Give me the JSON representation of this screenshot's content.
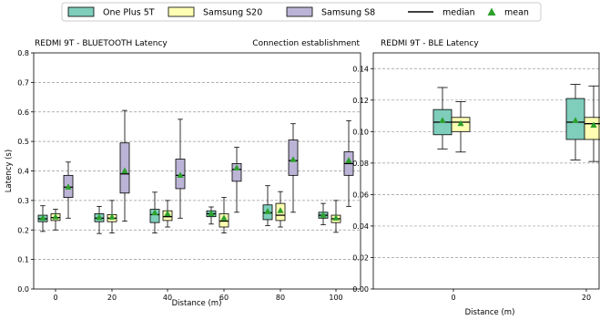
{
  "colors": {
    "one_plus_5t": "#7fcdbb",
    "samsung_s20": "#ffffb3",
    "samsung_s8": "#bcb4d6",
    "median": "#000000",
    "mean": "#2ca02c",
    "grid": "#999999"
  },
  "legend": {
    "one_plus": "One Plus 5T",
    "samsung_s20": "Samsung S20",
    "samsung_s8": "Samsung S8",
    "median": "median",
    "mean": "mean"
  },
  "chart_data": [
    {
      "type": "box",
      "title": "REDMI 9T - BLUETOOTH Latency",
      "subtitle": "Connection establishment",
      "xlabel": "Distance (m)",
      "ylabel": "Latency (s)",
      "ylim": [
        0.0,
        0.8
      ],
      "yticks": [
        "0.0",
        "0.1",
        "0.2",
        "0.3",
        "0.4",
        "0.5",
        "0.6",
        "0.7",
        "0.8"
      ],
      "grid": "y-dashed",
      "categories": [
        "0",
        "20",
        "40",
        "60",
        "80",
        "100"
      ],
      "series": [
        {
          "name": "One Plus 5T",
          "boxes": [
            {
              "whislo": 0.195,
              "q1": 0.228,
              "med": 0.238,
              "q3": 0.25,
              "whishi": 0.282,
              "mean": 0.24
            },
            {
              "whislo": 0.188,
              "q1": 0.228,
              "med": 0.24,
              "q3": 0.255,
              "whishi": 0.28,
              "mean": 0.242
            },
            {
              "whislo": 0.19,
              "q1": 0.225,
              "med": 0.252,
              "q3": 0.27,
              "whishi": 0.328,
              "mean": 0.258
            },
            {
              "whislo": 0.22,
              "q1": 0.245,
              "med": 0.255,
              "q3": 0.265,
              "whishi": 0.278,
              "mean": 0.255
            },
            {
              "whislo": 0.215,
              "q1": 0.235,
              "med": 0.258,
              "q3": 0.285,
              "whishi": 0.35,
              "mean": 0.262
            },
            {
              "whislo": 0.218,
              "q1": 0.24,
              "med": 0.25,
              "q3": 0.26,
              "whishi": 0.29,
              "mean": 0.25
            }
          ]
        },
        {
          "name": "Samsung S20",
          "boxes": [
            {
              "whislo": 0.2,
              "q1": 0.232,
              "med": 0.242,
              "q3": 0.255,
              "whishi": 0.27,
              "mean": 0.244
            },
            {
              "whislo": 0.19,
              "q1": 0.228,
              "med": 0.24,
              "q3": 0.252,
              "whishi": 0.3,
              "mean": 0.243
            },
            {
              "whislo": 0.21,
              "q1": 0.232,
              "med": 0.245,
              "q3": 0.265,
              "whishi": 0.3,
              "mean": 0.255
            },
            {
              "whislo": 0.19,
              "q1": 0.21,
              "med": 0.23,
              "q3": 0.255,
              "whishi": 0.31,
              "mean": 0.24
            },
            {
              "whislo": 0.21,
              "q1": 0.232,
              "med": 0.25,
              "q3": 0.29,
              "whishi": 0.33,
              "mean": 0.265
            },
            {
              "whislo": 0.192,
              "q1": 0.225,
              "med": 0.238,
              "q3": 0.25,
              "whishi": 0.3,
              "mean": 0.24
            }
          ]
        },
        {
          "name": "Samsung S8",
          "boxes": [
            {
              "whislo": 0.24,
              "q1": 0.31,
              "med": 0.345,
              "q3": 0.385,
              "whishi": 0.43,
              "mean": 0.345
            },
            {
              "whislo": 0.23,
              "q1": 0.325,
              "med": 0.39,
              "q3": 0.495,
              "whishi": 0.605,
              "mean": 0.4
            },
            {
              "whislo": 0.24,
              "q1": 0.34,
              "med": 0.385,
              "q3": 0.44,
              "whishi": 0.575,
              "mean": 0.385
            },
            {
              "whislo": 0.26,
              "q1": 0.365,
              "med": 0.405,
              "q3": 0.425,
              "whishi": 0.48,
              "mean": 0.41
            },
            {
              "whislo": 0.26,
              "q1": 0.385,
              "med": 0.435,
              "q3": 0.505,
              "whishi": 0.56,
              "mean": 0.438
            },
            {
              "whislo": 0.28,
              "q1": 0.385,
              "med": 0.425,
              "q3": 0.465,
              "whishi": 0.57,
              "mean": 0.435
            }
          ]
        }
      ]
    },
    {
      "type": "box",
      "title": "REDMI 9T - BLE Latency",
      "xlabel": "Distance (m)",
      "ylabel": "",
      "ylim": [
        0.0,
        0.15
      ],
      "yticks": [
        "0.00",
        "0.02",
        "0.04",
        "0.06",
        "0.08",
        "0.10",
        "0.12",
        "0.14"
      ],
      "grid": "y-dashed",
      "categories": [
        "0",
        "20"
      ],
      "series": [
        {
          "name": "One Plus 5T",
          "boxes": [
            {
              "whislo": 0.089,
              "q1": 0.098,
              "med": 0.106,
              "q3": 0.114,
              "whishi": 0.128,
              "mean": 0.107
            },
            {
              "whislo": 0.082,
              "q1": 0.095,
              "med": 0.106,
              "q3": 0.121,
              "whishi": 0.13,
              "mean": 0.107
            }
          ]
        },
        {
          "name": "Samsung S20",
          "boxes": [
            {
              "whislo": 0.087,
              "q1": 0.1,
              "med": 0.106,
              "q3": 0.109,
              "whishi": 0.119,
              "mean": 0.105
            },
            {
              "whislo": 0.081,
              "q1": 0.095,
              "med": 0.105,
              "q3": 0.109,
              "whishi": 0.129,
              "mean": 0.104
            }
          ]
        }
      ]
    }
  ]
}
